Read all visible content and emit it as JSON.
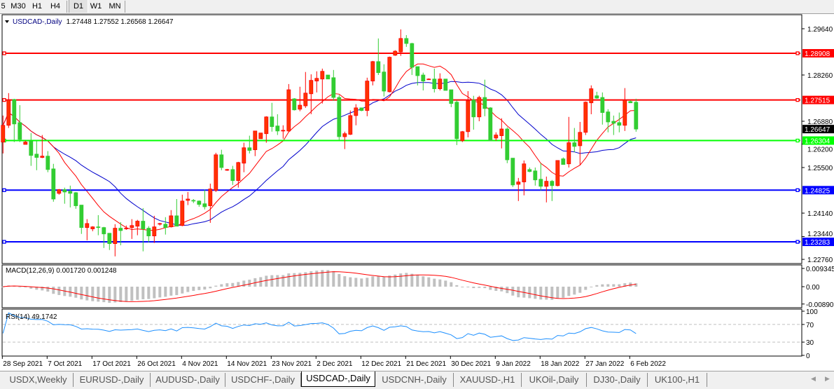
{
  "toolbar": {
    "timeframes": [
      {
        "label": "5",
        "active": false
      },
      {
        "label": "M30",
        "active": false
      },
      {
        "label": "H1",
        "active": false
      },
      {
        "label": "H4",
        "active": false
      },
      {
        "label": "D1",
        "active": true
      },
      {
        "label": "W1",
        "active": false
      },
      {
        "label": "MN",
        "active": false
      }
    ]
  },
  "chart_header": {
    "symbol": "USDCAD-,Daily",
    "ohlc_text": "1.27448 1.27552 1.26568 1.26647"
  },
  "tabs": [
    {
      "label": "USDX,Weekly",
      "active": false
    },
    {
      "label": "EURUSD-,Daily",
      "active": false
    },
    {
      "label": "AUDUSD-,Daily",
      "active": false
    },
    {
      "label": "USDCHF-,Daily",
      "active": false
    },
    {
      "label": "USDCAD-,Daily",
      "active": true
    },
    {
      "label": "USDCNH-,Daily",
      "active": false
    },
    {
      "label": "XAUUSD-,H1",
      "active": false
    },
    {
      "label": "UKOil-,Daily",
      "active": false
    },
    {
      "label": "DJ30-,Daily",
      "active": false
    },
    {
      "label": "UK100-,H1",
      "active": false
    }
  ],
  "colors": {
    "bull_candle": "#ff3300",
    "bear_candle": "#32cd32",
    "ma_fast": "#ff0000",
    "ma_slow": "#0000cc",
    "macd_hist": "#c0c0c0",
    "macd_signal": "#ff0000",
    "rsi_line": "#1e90ff",
    "current_price_bg": "#000000"
  },
  "chart_data": [
    {
      "type": "candlestick",
      "title": "USDCAD-,Daily",
      "y_ticks": [
        "1.29640",
        "1.28260",
        "1.26880",
        "1.26200",
        "1.25500",
        "1.24140",
        "1.23440",
        "1.22760"
      ],
      "ylim": [
        1.2276,
        1.2964
      ],
      "x_tick_labels": [
        "28 Sep 2021",
        "7 Oct 2021",
        "17 Oct 2021",
        "26 Oct 2021",
        "4 Nov 2021",
        "14 Nov 2021",
        "23 Nov 2021",
        "2 Dec 2021",
        "12 Dec 2021",
        "21 Dec 2021",
        "30 Dec 2021",
        "9 Jan 2022",
        "18 Jan 2022",
        "27 Jan 2022",
        "6 Feb 2022"
      ],
      "current_price": "1.26647",
      "levels": [
        {
          "price": "1.28908",
          "color": "#ff0000"
        },
        {
          "price": "1.27515",
          "color": "#ff0000"
        },
        {
          "price": "1.26304",
          "color": "#00ff00"
        },
        {
          "price": "1.24825",
          "color": "#0000ff"
        },
        {
          "price": "1.23283",
          "color": "#0000ff"
        }
      ],
      "ohlc_fields": [
        "open",
        "high",
        "low",
        "close"
      ],
      "ohlc": [
        [
          1.2626,
          1.2705,
          1.2592,
          1.2676
        ],
        [
          1.2676,
          1.2772,
          1.2668,
          1.2751
        ],
        [
          1.2753,
          1.2755,
          1.2626,
          1.268
        ],
        [
          1.2684,
          1.2736,
          1.2626,
          1.2634
        ],
        [
          1.2619,
          1.263,
          1.2619,
          1.2626
        ],
        [
          1.2628,
          1.2653,
          1.2555,
          1.2586
        ],
        [
          1.259,
          1.263,
          1.2542,
          1.258
        ],
        [
          1.258,
          1.2647,
          1.2578,
          1.2584
        ],
        [
          1.2584,
          1.2599,
          1.2536,
          1.2544
        ],
        [
          1.2546,
          1.2561,
          1.2448,
          1.2456
        ],
        [
          1.2473,
          1.2486,
          1.2469,
          1.2484
        ],
        [
          1.2484,
          1.249,
          1.2442,
          1.2477
        ],
        [
          1.2479,
          1.2496,
          1.2431,
          1.2473
        ],
        [
          1.2475,
          1.2477,
          1.2427,
          1.2436
        ],
        [
          1.2438,
          1.2438,
          1.2352,
          1.2371
        ],
        [
          1.2371,
          1.2396,
          1.2333,
          1.2383
        ],
        [
          1.2367,
          1.2375,
          1.236,
          1.2373
        ],
        [
          1.2373,
          1.2408,
          1.2348,
          1.2371
        ],
        [
          1.2371,
          1.2373,
          1.231,
          1.2352
        ],
        [
          1.2354,
          1.2354,
          1.2304,
          1.2323
        ],
        [
          1.2323,
          1.2381,
          1.2285,
          1.2369
        ],
        [
          1.2369,
          1.2387,
          1.2318,
          1.2362
        ],
        [
          1.2367,
          1.2377,
          1.2364,
          1.2369
        ],
        [
          1.2371,
          1.2396,
          1.2337,
          1.2377
        ],
        [
          1.2375,
          1.2394,
          1.2348,
          1.239
        ],
        [
          1.239,
          1.2429,
          1.23,
          1.2367
        ],
        [
          1.2369,
          1.2375,
          1.2327,
          1.2346
        ],
        [
          1.2346,
          1.2406,
          1.2325,
          1.2373
        ],
        [
          1.2381,
          1.2385,
          1.2377,
          1.2383
        ],
        [
          1.2381,
          1.2402,
          1.235,
          1.2371
        ],
        [
          1.2373,
          1.2423,
          1.2371,
          1.2406
        ],
        [
          1.2406,
          1.2456,
          1.2375,
          1.2375
        ],
        [
          1.2377,
          1.2469,
          1.2375,
          1.245
        ],
        [
          1.2452,
          1.2477,
          1.2438,
          1.2456
        ],
        [
          1.2452,
          1.2456,
          1.2444,
          1.245
        ],
        [
          1.245,
          1.2452,
          1.2433,
          1.244
        ],
        [
          1.2442,
          1.2484,
          1.2425,
          1.2433
        ],
        [
          1.2436,
          1.2502,
          1.2385,
          1.2486
        ],
        [
          1.2482,
          1.2594,
          1.2477,
          1.2588
        ],
        [
          1.2588,
          1.2603,
          1.2542,
          1.255
        ],
        [
          1.2542,
          1.2546,
          1.254,
          1.2544
        ],
        [
          1.2544,
          1.2555,
          1.2498,
          1.2511
        ],
        [
          1.2511,
          1.2567,
          1.249,
          1.2565
        ],
        [
          1.2563,
          1.2624,
          1.2536,
          1.2609
        ],
        [
          1.2609,
          1.2645,
          1.2592,
          1.2601
        ],
        [
          1.2603,
          1.2659,
          1.2584,
          1.2659
        ],
        [
          1.2636,
          1.2653,
          1.2636,
          1.2653
        ],
        [
          1.2651,
          1.2703,
          1.2624,
          1.2701
        ],
        [
          1.2701,
          1.2743,
          1.2657,
          1.2672
        ],
        [
          1.2674,
          1.2709,
          1.2647,
          1.2659
        ],
        [
          1.2661,
          1.2676,
          1.2636,
          1.2661
        ],
        [
          1.2659,
          1.2799,
          1.2657,
          1.2782
        ],
        [
          1.2755,
          1.2757,
          1.272,
          1.2722
        ],
        [
          1.2724,
          1.2791,
          1.2718,
          1.2736
        ],
        [
          1.2734,
          1.2835,
          1.2728,
          1.2772
        ],
        [
          1.277,
          1.2828,
          1.2709,
          1.281
        ],
        [
          1.2808,
          1.2837,
          1.2774,
          1.2816
        ],
        [
          1.2814,
          1.2845,
          1.2741,
          1.2837
        ],
        [
          1.2826,
          1.2826,
          1.2814,
          1.2814
        ],
        [
          1.2818,
          1.2841,
          1.2749,
          1.2759
        ],
        [
          1.2759,
          1.2766,
          1.2632,
          1.2642
        ],
        [
          1.2642,
          1.2657,
          1.2605,
          1.2651
        ],
        [
          1.2649,
          1.272,
          1.2647,
          1.2705
        ],
        [
          1.2705,
          1.2739,
          1.2676,
          1.2728
        ],
        [
          1.2728,
          1.2728,
          1.2718,
          1.272
        ],
        [
          1.272,
          1.2818,
          1.2703,
          1.2808
        ],
        [
          1.2808,
          1.2868,
          1.2795,
          1.2866
        ],
        [
          1.2866,
          1.2935,
          1.2826,
          1.2833
        ],
        [
          1.2835,
          1.2858,
          1.2762,
          1.2778
        ],
        [
          1.2776,
          1.2881,
          1.2774,
          1.2879
        ],
        [
          1.2885,
          1.29,
          1.2883,
          1.2897
        ],
        [
          1.2895,
          1.2962,
          1.2883,
          1.2935
        ],
        [
          1.2935,
          1.2945,
          1.291,
          1.292
        ],
        [
          1.292,
          1.2922,
          1.2826,
          1.2849
        ],
        [
          1.2851,
          1.2851,
          1.2795,
          1.2824
        ],
        [
          1.2826,
          1.2833,
          1.278,
          1.2808
        ],
        [
          1.2814,
          1.2816,
          1.2812,
          1.2814
        ],
        [
          1.2814,
          1.2845,
          1.2774,
          1.2785
        ],
        [
          1.2785,
          1.2831,
          1.278,
          1.2814
        ],
        [
          1.2814,
          1.2814,
          1.278,
          1.278
        ],
        [
          1.2782,
          1.2782,
          1.273,
          1.2741
        ],
        [
          1.2745,
          1.2751,
          1.2617,
          1.2636
        ],
        [
          1.263,
          1.2659,
          1.2626,
          1.2657
        ],
        [
          1.2657,
          1.2778,
          1.264,
          1.2749
        ],
        [
          1.2751,
          1.2764,
          1.2663,
          1.2701
        ],
        [
          1.2701,
          1.2764,
          1.2688,
          1.2759
        ],
        [
          1.2759,
          1.2812,
          1.2703,
          1.2726
        ],
        [
          1.2728,
          1.273,
          1.263,
          1.263
        ],
        [
          1.2638,
          1.2655,
          1.263,
          1.2647
        ],
        [
          1.2645,
          1.2697,
          1.2607,
          1.2665
        ],
        [
          1.2665,
          1.267,
          1.2563,
          1.2573
        ],
        [
          1.2578,
          1.2578,
          1.2492,
          1.2498
        ],
        [
          1.25,
          1.2519,
          1.245,
          1.2507
        ],
        [
          1.2507,
          1.2571,
          1.2467,
          1.2561
        ],
        [
          1.2544,
          1.255,
          1.2536,
          1.2538
        ],
        [
          1.254,
          1.255,
          1.2496,
          1.2513
        ],
        [
          1.2515,
          1.2563,
          1.2482,
          1.2494
        ],
        [
          1.2494,
          1.2523,
          1.2446,
          1.2509
        ],
        [
          1.2509,
          1.2513,
          1.245,
          1.2496
        ],
        [
          1.2496,
          1.2571,
          1.2494,
          1.2571
        ],
        [
          1.2576,
          1.258,
          1.2559,
          1.2559
        ],
        [
          1.2561,
          1.2701,
          1.255,
          1.2624
        ],
        [
          1.2624,
          1.2668,
          1.2596,
          1.2613
        ],
        [
          1.2615,
          1.2686,
          1.2557,
          1.2655
        ],
        [
          1.2655,
          1.2747,
          1.2647,
          1.2745
        ],
        [
          1.2743,
          1.2795,
          1.2709,
          1.2785
        ],
        [
          1.2764,
          1.2776,
          1.2755,
          1.2757
        ],
        [
          1.2759,
          1.2774,
          1.2678,
          1.2714
        ],
        [
          1.2716,
          1.2724,
          1.2655,
          1.2686
        ],
        [
          1.2688,
          1.2705,
          1.2647,
          1.2682
        ],
        [
          1.2684,
          1.2714,
          1.2655,
          1.2676
        ],
        [
          1.2676,
          1.2787,
          1.2659,
          1.2751
        ],
        [
          1.2747,
          1.2751,
          1.2743,
          1.2743
        ],
        [
          1.27448,
          1.27552,
          1.26568,
          1.26647
        ]
      ]
    },
    {
      "type": "bar+line",
      "title": "MACD(12,26,9) 0.001720 0.001248",
      "label": "MACD(12,26,9)",
      "values_text": "0.001720 0.001248",
      "y_ticks": [
        "0.009345",
        "0.00",
        "-0.00890"
      ],
      "ylim": [
        -0.0089,
        0.009345
      ]
    },
    {
      "type": "line",
      "title": "RSI(14) 49.1742",
      "label": "RSI(14)",
      "value_text": "49.1742",
      "y_ticks": [
        "100",
        "70",
        "30",
        "0"
      ],
      "ylim": [
        0,
        100
      ],
      "levels": [
        70,
        30
      ]
    }
  ]
}
